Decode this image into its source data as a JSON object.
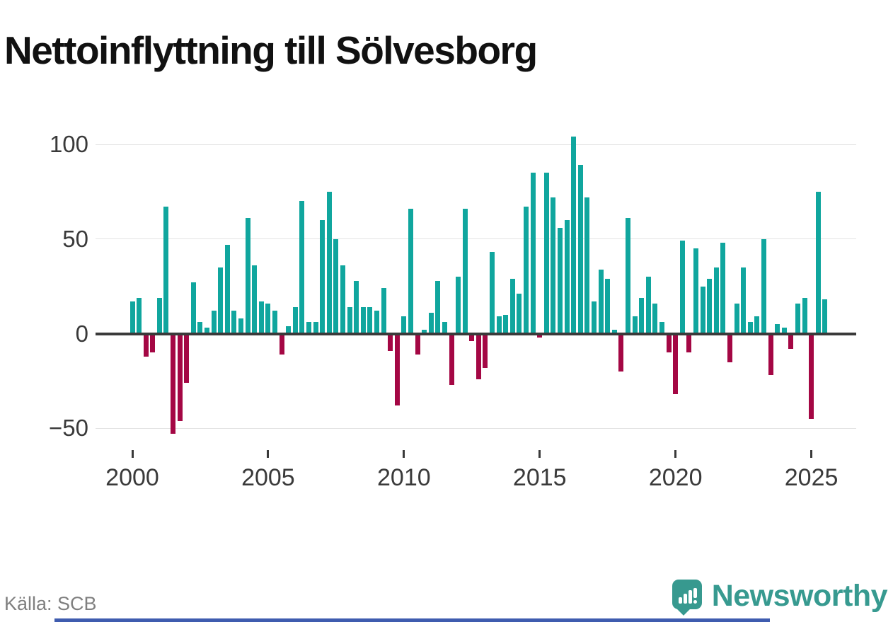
{
  "title": "Nettoinflyttning till Sölvesborg",
  "source": "Källa: SCB",
  "branding": {
    "name": "Newsworthy",
    "logo_icon": "newsworthy-pin-chart-icon"
  },
  "colors": {
    "positive_bar": "#10a69e",
    "negative_bar": "#a40744",
    "gridline": "#e3e3e3",
    "zero_line": "#3a3a3a",
    "axis_text": "#3a3a3a",
    "title_text": "#111111",
    "source_text": "#808080",
    "brand_teal": "#379a90",
    "footer_bar": "#3f5caf"
  },
  "chart_data": {
    "type": "bar",
    "title": "Nettoinflyttning till Sölvesborg",
    "xlabel": "",
    "ylabel": "",
    "x_unit": "quarter",
    "ylim": [
      -55,
      110
    ],
    "grid": true,
    "legend": "none",
    "y_ticks": [
      {
        "value": 100,
        "label": "100"
      },
      {
        "value": 50,
        "label": "50"
      },
      {
        "value": 0,
        "label": "0"
      },
      {
        "value": -50,
        "label": "−50"
      }
    ],
    "x_ticks": [
      {
        "year": 2000,
        "label": "2000"
      },
      {
        "year": 2005,
        "label": "2005"
      },
      {
        "year": 2010,
        "label": "2010"
      },
      {
        "year": 2015,
        "label": "2015"
      },
      {
        "year": 2020,
        "label": "2020"
      },
      {
        "year": 2025,
        "label": "2025"
      }
    ],
    "categories": [
      "2000Q1",
      "2000Q2",
      "2000Q3",
      "2000Q4",
      "2001Q1",
      "2001Q2",
      "2001Q3",
      "2001Q4",
      "2002Q1",
      "2002Q2",
      "2002Q3",
      "2002Q4",
      "2003Q1",
      "2003Q2",
      "2003Q3",
      "2003Q4",
      "2004Q1",
      "2004Q2",
      "2004Q3",
      "2004Q4",
      "2005Q1",
      "2005Q2",
      "2005Q3",
      "2005Q4",
      "2006Q1",
      "2006Q2",
      "2006Q3",
      "2006Q4",
      "2007Q1",
      "2007Q2",
      "2007Q3",
      "2007Q4",
      "2008Q1",
      "2008Q2",
      "2008Q3",
      "2008Q4",
      "2009Q1",
      "2009Q2",
      "2009Q3",
      "2009Q4",
      "2010Q1",
      "2010Q2",
      "2010Q3",
      "2010Q4",
      "2011Q1",
      "2011Q2",
      "2011Q3",
      "2011Q4",
      "2012Q1",
      "2012Q2",
      "2012Q3",
      "2012Q4",
      "2013Q1",
      "2013Q2",
      "2013Q3",
      "2013Q4",
      "2014Q1",
      "2014Q2",
      "2014Q3",
      "2014Q4",
      "2015Q1",
      "2015Q2",
      "2015Q3",
      "2015Q4",
      "2016Q1",
      "2016Q2",
      "2016Q3",
      "2016Q4",
      "2017Q1",
      "2017Q2",
      "2017Q3",
      "2017Q4",
      "2018Q1",
      "2018Q2",
      "2018Q3",
      "2018Q4",
      "2019Q1",
      "2019Q2",
      "2019Q3",
      "2019Q4",
      "2020Q1",
      "2020Q2",
      "2020Q3",
      "2020Q4",
      "2021Q1",
      "2021Q2",
      "2021Q3",
      "2021Q4",
      "2022Q1",
      "2022Q2",
      "2022Q3",
      "2022Q4",
      "2023Q1",
      "2023Q2",
      "2023Q3",
      "2023Q4",
      "2024Q1",
      "2024Q2",
      "2024Q3",
      "2024Q4",
      "2025Q1",
      "2025Q2",
      "2025Q3"
    ],
    "values": [
      17,
      19,
      -12,
      -10,
      19,
      67,
      -53,
      -46,
      -26,
      27,
      6,
      3,
      12,
      35,
      47,
      12,
      8,
      61,
      36,
      17,
      16,
      12,
      -11,
      4,
      14,
      70,
      6,
      6,
      60,
      75,
      50,
      36,
      14,
      28,
      14,
      14,
      12,
      24,
      -9,
      -38,
      9,
      66,
      -11,
      2,
      11,
      28,
      6,
      -27,
      30,
      66,
      -4,
      -24,
      -18,
      43,
      9,
      10,
      29,
      21,
      67,
      85,
      -2,
      85,
      72,
      56,
      60,
      104,
      89,
      72,
      17,
      34,
      29,
      2,
      -20,
      61,
      9,
      19,
      30,
      16,
      6,
      -10,
      -32,
      49,
      -10,
      45,
      25,
      29,
      35,
      48,
      -15,
      16,
      35,
      6,
      9,
      50,
      -22,
      5,
      3,
      -8,
      16,
      19,
      -45,
      75,
      18
    ]
  }
}
